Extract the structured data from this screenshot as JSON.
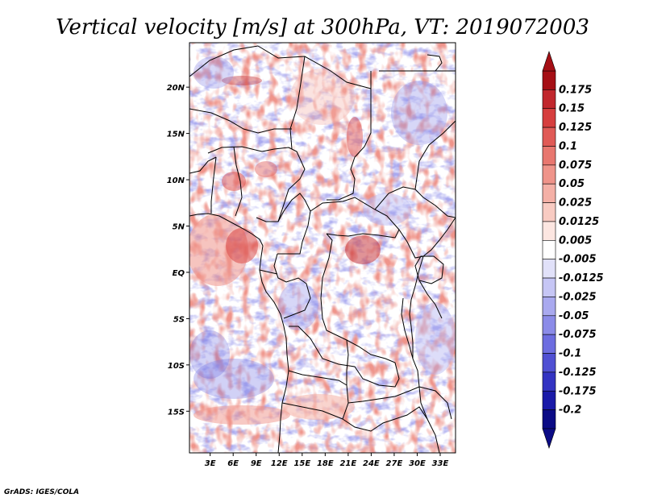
{
  "chart_data": {
    "type": "heatmap",
    "title": "Vertical velocity [m/s] at 300hPa, VT: 2019072003",
    "xlabel": "",
    "ylabel": "",
    "x_ticks": [
      "3E",
      "6E",
      "9E",
      "12E",
      "15E",
      "18E",
      "21E",
      "24E",
      "27E",
      "30E",
      "33E"
    ],
    "x_tick_values": [
      3,
      6,
      9,
      12,
      15,
      18,
      21,
      24,
      27,
      30,
      33
    ],
    "y_ticks": [
      "20N",
      "15N",
      "10N",
      "5N",
      "EQ",
      "5S",
      "10S",
      "15S"
    ],
    "y_tick_values": [
      20,
      15,
      10,
      5,
      0,
      -5,
      -10,
      -15
    ],
    "xlim": [
      0.3,
      35
    ],
    "ylim": [
      -19.5,
      24.8
    ],
    "colorbar": {
      "labels": [
        "0.175",
        "0.15",
        "0.125",
        "0.1",
        "0.075",
        "0.05",
        "0.025",
        "0.0125",
        "0.005",
        "-0.005",
        "-0.0125",
        "-0.025",
        "-0.05",
        "-0.075",
        "-0.1",
        "-0.125",
        "-0.175",
        "-0.2"
      ],
      "colors": [
        "#a50f15",
        "#c1272d",
        "#d63e3e",
        "#e05a56",
        "#e8776f",
        "#ef948a",
        "#f4b0a6",
        "#f8cbc2",
        "#fce6e1",
        "#ffffff",
        "#e1e1f9",
        "#c6c6f5",
        "#a9a9ef",
        "#8b8be8",
        "#6d6de0",
        "#5050d3",
        "#3333c2",
        "#1a1aa8",
        "#0b0b85"
      ],
      "top_arrow_color": "#a50f15",
      "bottom_arrow_color": "#0b0b85"
    },
    "grid": false
  },
  "credit": "GrADS: IGES/COLA"
}
